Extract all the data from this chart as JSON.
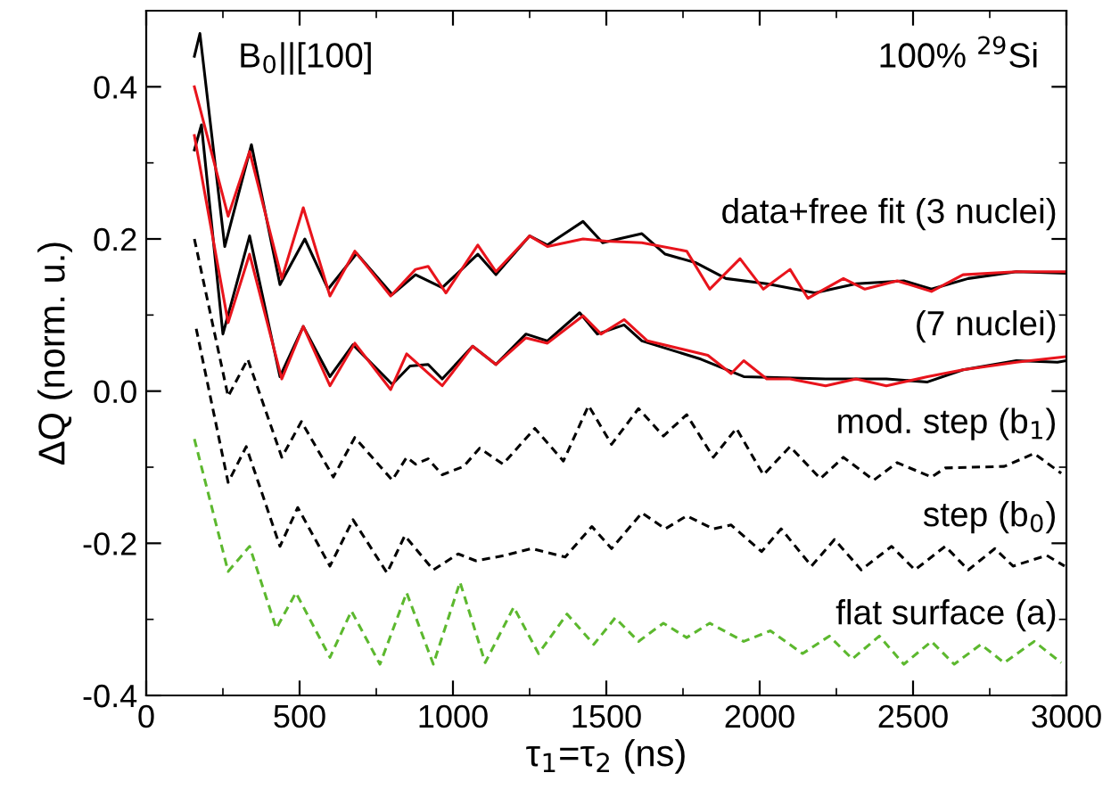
{
  "chart_data": {
    "type": "line",
    "xlabel": "τ$_{1}$=τ$_{2}$ (ns)",
    "ylabel": "ΔQ (norm. u.)",
    "xlim": [
      0,
      3000
    ],
    "xticks": [
      0,
      500,
      1000,
      1500,
      2000,
      2500,
      3000
    ],
    "ylim": [
      -0.4,
      0.5
    ],
    "yticks": [
      {
        "value": -0.4,
        "label": "-0.4"
      },
      {
        "value": -0.2,
        "label": "-0.2"
      },
      {
        "value": 0.0,
        "label": "0.0"
      },
      {
        "value": 0.2,
        "label": "0.2"
      },
      {
        "value": 0.4,
        "label": "0.4"
      }
    ],
    "grid": false,
    "marker": "none",
    "annotations": [
      "B$_{0}$||[100]",
      "100% $^{29}$Si",
      "data+free fit (3 nuclei)",
      "(7 nuclei)",
      "mod. step (b$_{1}$)",
      "step (b$_{0}$)",
      "flat surface (a)"
    ],
    "series": [
      {
        "color": "#000000",
        "line_style": "solid",
        "x": [
          157,
          175,
          256,
          343,
          436,
          517,
          593,
          686,
          802,
          878,
          965,
          1081,
          1140,
          1250,
          1308,
          1424,
          1488,
          1540,
          1616,
          1692,
          1790,
          1890,
          2023,
          2180,
          2314,
          2470,
          2560,
          2680,
          2837,
          2994
        ],
        "values": [
          0.44,
          0.47,
          0.19,
          0.324,
          0.14,
          0.2,
          0.134,
          0.181,
          0.127,
          0.153,
          0.136,
          0.18,
          0.153,
          0.204,
          0.192,
          0.223,
          0.195,
          0.2,
          0.207,
          0.18,
          0.169,
          0.148,
          0.141,
          0.129,
          0.141,
          0.145,
          0.134,
          0.148,
          0.157,
          0.155
        ]
      },
      {
        "color": "#e8141c",
        "line_style": "solid",
        "x": [
          157,
          267,
          337,
          442,
          512,
          599,
          680,
          797,
          878,
          919,
          977,
          1081,
          1140,
          1250,
          1308,
          1424,
          1500,
          1616,
          1762,
          1837,
          1936,
          2012,
          2099,
          2157,
          2273,
          2343,
          2448,
          2560,
          2663,
          2837,
          2994
        ],
        "values": [
          0.4,
          0.23,
          0.315,
          0.148,
          0.241,
          0.125,
          0.184,
          0.125,
          0.16,
          0.164,
          0.129,
          0.192,
          0.157,
          0.204,
          0.19,
          0.2,
          0.197,
          0.195,
          0.184,
          0.134,
          0.174,
          0.134,
          0.16,
          0.122,
          0.148,
          0.134,
          0.145,
          0.131,
          0.153,
          0.157,
          0.157
        ]
      },
      {
        "color": "#000000",
        "line_style": "solid",
        "x": [
          157,
          180,
          250,
          337,
          436,
          512,
          599,
          674,
          802,
          860,
          919,
          965,
          1064,
          1140,
          1238,
          1308,
          1413,
          1471,
          1558,
          1616,
          1808,
          1948,
          2215,
          2413,
          2547,
          2663,
          2837,
          2971,
          3000
        ],
        "values": [
          0.317,
          0.35,
          0.075,
          0.204,
          0.019,
          0.085,
          0.019,
          0.061,
          0.009,
          0.033,
          0.035,
          0.016,
          0.059,
          0.035,
          0.075,
          0.066,
          0.103,
          0.075,
          0.087,
          0.066,
          0.042,
          0.019,
          0.016,
          0.016,
          0.012,
          0.028,
          0.04,
          0.038,
          0.04
        ]
      },
      {
        "color": "#e8141c",
        "line_style": "solid",
        "x": [
          157,
          267,
          337,
          442,
          512,
          599,
          680,
          797,
          849,
          965,
          1064,
          1140,
          1238,
          1308,
          1424,
          1483,
          1558,
          1634,
          1831,
          1907,
          1948,
          2023,
          2099,
          2215,
          2314,
          2413,
          2547,
          2663,
          2837,
          2994
        ],
        "values": [
          0.336,
          0.09,
          0.18,
          0.016,
          0.085,
          0.007,
          0.063,
          0.002,
          0.049,
          0.007,
          0.059,
          0.035,
          0.07,
          0.063,
          0.099,
          0.075,
          0.094,
          0.066,
          0.047,
          0.023,
          0.04,
          0.016,
          0.016,
          0.007,
          0.016,
          0.007,
          0.019,
          0.028,
          0.038,
          0.045
        ]
      },
      {
        "color": "#000000",
        "line_style": "dashed",
        "x": [
          157,
          267,
          331,
          442,
          506,
          610,
          680,
          802,
          849,
          878,
          919,
          965,
          1035,
          1087,
          1163,
          1267,
          1360,
          1442,
          1517,
          1605,
          1686,
          1762,
          1849,
          1924,
          2012,
          2099,
          2198,
          2273,
          2372,
          2448,
          2560,
          2605,
          2797,
          2895,
          2983
        ],
        "values": [
          0.2,
          -0.007,
          0.042,
          -0.087,
          -0.04,
          -0.113,
          -0.061,
          -0.117,
          -0.087,
          -0.096,
          -0.089,
          -0.11,
          -0.099,
          -0.075,
          -0.096,
          -0.049,
          -0.092,
          -0.019,
          -0.07,
          -0.023,
          -0.059,
          -0.031,
          -0.087,
          -0.049,
          -0.11,
          -0.073,
          -0.115,
          -0.087,
          -0.117,
          -0.094,
          -0.113,
          -0.101,
          -0.099,
          -0.082,
          -0.108
        ]
      },
      {
        "color": "#000000",
        "line_style": "dashed",
        "x": [
          163,
          267,
          326,
          436,
          494,
          599,
          674,
          785,
          843,
          936,
          1017,
          1075,
          1169,
          1256,
          1366,
          1453,
          1517,
          1616,
          1692,
          1762,
          1849,
          1907,
          2006,
          2070,
          2169,
          2244,
          2331,
          2430,
          2506,
          2605,
          2680,
          2767,
          2826,
          2936,
          2994
        ],
        "values": [
          0.082,
          -0.12,
          -0.073,
          -0.204,
          -0.153,
          -0.23,
          -0.169,
          -0.239,
          -0.19,
          -0.235,
          -0.214,
          -0.223,
          -0.216,
          -0.207,
          -0.218,
          -0.178,
          -0.207,
          -0.16,
          -0.181,
          -0.164,
          -0.181,
          -0.176,
          -0.211,
          -0.181,
          -0.23,
          -0.195,
          -0.235,
          -0.204,
          -0.235,
          -0.204,
          -0.235,
          -0.207,
          -0.23,
          -0.216,
          -0.23
        ]
      },
      {
        "color": "#5cb82e",
        "line_style": "dashed",
        "x": [
          157,
          267,
          337,
          424,
          488,
          599,
          669,
          762,
          849,
          936,
          1023,
          1105,
          1198,
          1279,
          1372,
          1459,
          1529,
          1605,
          1686,
          1762,
          1837,
          1948,
          2035,
          2140,
          2227,
          2302,
          2390,
          2470,
          2560,
          2634,
          2721,
          2797,
          2895,
          2983
        ],
        "values": [
          -0.063,
          -0.237,
          -0.204,
          -0.312,
          -0.265,
          -0.35,
          -0.289,
          -0.359,
          -0.265,
          -0.359,
          -0.251,
          -0.357,
          -0.284,
          -0.345,
          -0.293,
          -0.333,
          -0.298,
          -0.329,
          -0.305,
          -0.324,
          -0.305,
          -0.329,
          -0.315,
          -0.345,
          -0.322,
          -0.352,
          -0.322,
          -0.359,
          -0.329,
          -0.359,
          -0.333,
          -0.357,
          -0.329,
          -0.357
        ]
      }
    ]
  }
}
